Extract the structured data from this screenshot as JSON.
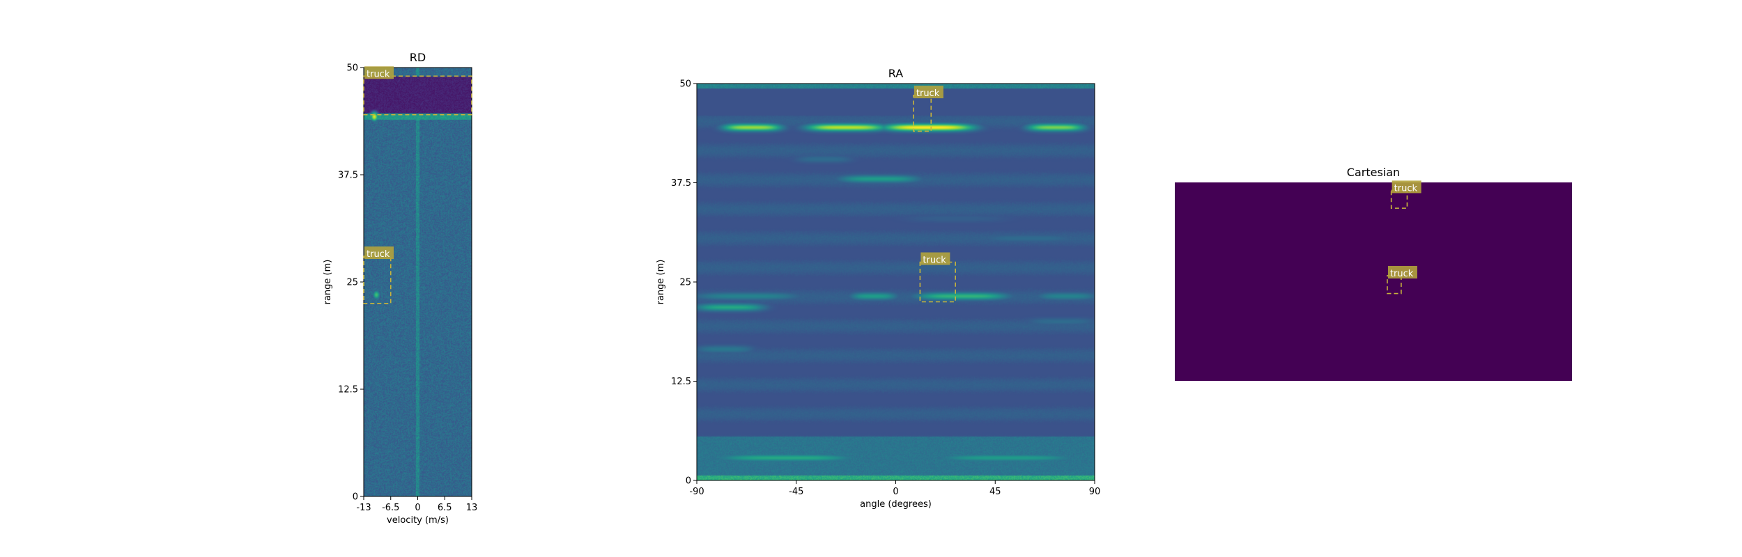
{
  "chart_data": [
    {
      "type": "heatmap",
      "title": "RD",
      "xlabel": "velocity (m/s)",
      "ylabel": "range (m)",
      "xlim": [
        -13,
        13
      ],
      "ylim": [
        0,
        50
      ],
      "xticks": [
        {
          "v": -13,
          "label": "-13"
        },
        {
          "v": -6.5,
          "label": "-6.5"
        },
        {
          "v": 0,
          "label": "0"
        },
        {
          "v": 6.5,
          "label": "6.5"
        },
        {
          "v": 13,
          "label": "13"
        }
      ],
      "yticks": [
        {
          "v": 0,
          "label": "0"
        },
        {
          "v": 12.5,
          "label": "12.5"
        },
        {
          "v": 25,
          "label": "25"
        },
        {
          "v": 37.5,
          "label": "37.5"
        },
        {
          "v": 50,
          "label": "50"
        }
      ],
      "colormap": "viridis",
      "features": [
        {
          "kind": "vline",
          "x": 0,
          "intensity": 0.55
        },
        {
          "kind": "hband",
          "y": [
            44.5,
            49
          ],
          "intensity": 0.05
        },
        {
          "kind": "hline",
          "y": 44.3,
          "intensity": 0.6
        },
        {
          "kind": "spot",
          "x": -10.5,
          "y": 44.3,
          "intensity": 0.95
        },
        {
          "kind": "spot",
          "x": -10,
          "y": 23.5,
          "intensity": 0.7
        }
      ],
      "boxes": [
        {
          "label": "truck",
          "x": [
            -13,
            13
          ],
          "y": [
            44.5,
            49
          ]
        },
        {
          "label": "truck",
          "x": [
            -13,
            -6.5
          ],
          "y": [
            22.5,
            28
          ]
        }
      ]
    },
    {
      "type": "heatmap",
      "title": "RA",
      "xlabel": "angle (degrees)",
      "ylabel": "range (m)",
      "xlim": [
        -90,
        90
      ],
      "ylim": [
        0,
        50
      ],
      "xticks": [
        {
          "v": -90,
          "label": "-90"
        },
        {
          "v": -45,
          "label": "-45"
        },
        {
          "v": 0,
          "label": "0"
        },
        {
          "v": 45,
          "label": "45"
        },
        {
          "v": 90,
          "label": "90"
        }
      ],
      "yticks": [
        {
          "v": 0,
          "label": "0"
        },
        {
          "v": 12.5,
          "label": "12.5"
        },
        {
          "v": 25,
          "label": "25"
        },
        {
          "v": 37.5,
          "label": "37.5"
        },
        {
          "v": 50,
          "label": "50"
        }
      ],
      "colormap": "viridis",
      "features": [
        {
          "kind": "hband",
          "y": [
            46,
            49.3
          ],
          "intensity": 0.02
        },
        {
          "kind": "streak",
          "y": 44.5,
          "x": [
            -78,
            -52
          ],
          "intensity": 0.85
        },
        {
          "kind": "streak",
          "y": 44.5,
          "x": [
            -40,
            -5
          ],
          "intensity": 0.9
        },
        {
          "kind": "streak",
          "y": 44.5,
          "x": [
            -5,
            35
          ],
          "intensity": 1.0
        },
        {
          "kind": "streak",
          "y": 44.5,
          "x": [
            60,
            85
          ],
          "intensity": 0.8
        },
        {
          "kind": "streak",
          "y": 38,
          "x": [
            -25,
            10
          ],
          "intensity": 0.55
        },
        {
          "kind": "streak",
          "y": 40.5,
          "x": [
            -45,
            -20
          ],
          "intensity": 0.35
        },
        {
          "kind": "streak",
          "y": 33,
          "x": [
            5,
            50
          ],
          "intensity": 0.3
        },
        {
          "kind": "streak",
          "y": 30.5,
          "x": [
            40,
            80
          ],
          "intensity": 0.35
        },
        {
          "kind": "streak",
          "y": 23.2,
          "x": [
            -90,
            -45
          ],
          "intensity": 0.45
        },
        {
          "kind": "streak",
          "y": 23.2,
          "x": [
            -20,
            0
          ],
          "intensity": 0.55
        },
        {
          "kind": "streak",
          "y": 23.2,
          "x": [
            10,
            50
          ],
          "intensity": 0.65
        },
        {
          "kind": "streak",
          "y": 23.2,
          "x": [
            65,
            90
          ],
          "intensity": 0.45
        },
        {
          "kind": "streak",
          "y": 21.8,
          "x": [
            -90,
            -60
          ],
          "intensity": 0.6
        },
        {
          "kind": "streak",
          "y": 20,
          "x": [
            60,
            90
          ],
          "intensity": 0.35
        },
        {
          "kind": "streak",
          "y": 16.5,
          "x": [
            -90,
            -65
          ],
          "intensity": 0.4
        },
        {
          "kind": "hband",
          "y": [
            0,
            5.5
          ],
          "intensity": 0.35
        },
        {
          "kind": "streak",
          "y": 2.8,
          "x": [
            -80,
            -20
          ],
          "intensity": 0.6
        },
        {
          "kind": "streak",
          "y": 2.8,
          "x": [
            20,
            80
          ],
          "intensity": 0.55
        },
        {
          "kind": "hline",
          "y": 0.2,
          "intensity": 0.7
        },
        {
          "kind": "hline",
          "y": 49.8,
          "intensity": 0.5
        }
      ],
      "boxes": [
        {
          "label": "truck",
          "x": [
            8,
            16
          ],
          "y": [
            44,
            48.5
          ]
        },
        {
          "label": "truck",
          "x": [
            11,
            27
          ],
          "y": [
            22.5,
            27.5
          ]
        }
      ]
    },
    {
      "type": "heatmap",
      "title": "Cartesian",
      "colormap": "viridis",
      "uniform_value": 0.0,
      "xlim": [
        -50,
        50
      ],
      "ylim": [
        0,
        50
      ],
      "boxes": [
        {
          "label": "truck",
          "x": [
            4.5,
            8.5
          ],
          "y": [
            43.5,
            48
          ]
        },
        {
          "label": "truck",
          "x": [
            3.5,
            7
          ],
          "y": [
            22,
            26.5
          ]
        }
      ]
    }
  ]
}
